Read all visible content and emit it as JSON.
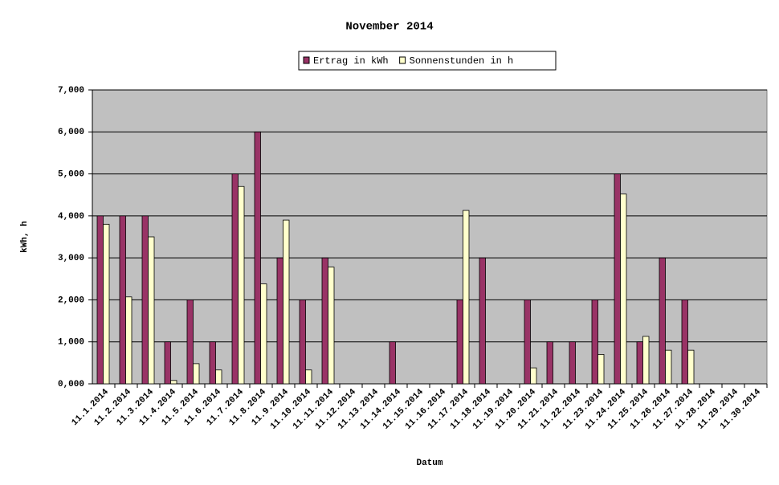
{
  "chart_data": {
    "type": "bar",
    "title": "November 2014",
    "x_label": "Datum",
    "y_label": "kWh, h",
    "categories": [
      "11.1.2014",
      "11.2.2014",
      "11.3.2014",
      "11.4.2014",
      "11.5.2014",
      "11.6.2014",
      "11.7.2014",
      "11.8.2014",
      "11.9.2014",
      "11.10.2014",
      "11.11.2014",
      "11.12.2014",
      "11.13.2014",
      "11.14.2014",
      "11.15.2014",
      "11.16.2014",
      "11.17.2014",
      "11.18.2014",
      "11.19.2014",
      "11.20.2014",
      "11.21.2014",
      "11.22.2014",
      "11.23.2014",
      "11.24.2014",
      "11.25.2014",
      "11.26.2014",
      "11.27.2014",
      "11.28.2014",
      "11.29.2014",
      "11.30.2014"
    ],
    "series": [
      {
        "name": "Ertrag in kWh",
        "color": "#993366",
        "values": [
          4,
          4,
          4,
          1,
          2,
          1,
          5,
          6,
          3,
          2,
          3,
          null,
          null,
          1,
          null,
          null,
          2,
          3,
          null,
          2,
          1,
          1,
          2,
          5,
          1,
          3,
          2,
          null,
          null,
          null
        ]
      },
      {
        "name": "Sonnenstunden in h",
        "color": "#ffffcc",
        "values": [
          3.8,
          2.07,
          3.5,
          0.08,
          0.48,
          0.33,
          4.7,
          2.38,
          3.9,
          0.33,
          2.78,
          null,
          null,
          null,
          null,
          null,
          4.13,
          null,
          null,
          0.38,
          null,
          null,
          0.7,
          4.52,
          1.13,
          0.8,
          0.8,
          null,
          null,
          null
        ]
      }
    ],
    "ylim": [
      0,
      7
    ],
    "yticks": [
      {
        "value": 0,
        "label": "0,000"
      },
      {
        "value": 1,
        "label": "1,000"
      },
      {
        "value": 2,
        "label": "2,000"
      },
      {
        "value": 3,
        "label": "3,000"
      },
      {
        "value": 4,
        "label": "4,000"
      },
      {
        "value": 5,
        "label": "5,000"
      },
      {
        "value": 6,
        "label": "6,000"
      },
      {
        "value": 7,
        "label": "7,000"
      }
    ],
    "grid": true,
    "legend": "top"
  }
}
